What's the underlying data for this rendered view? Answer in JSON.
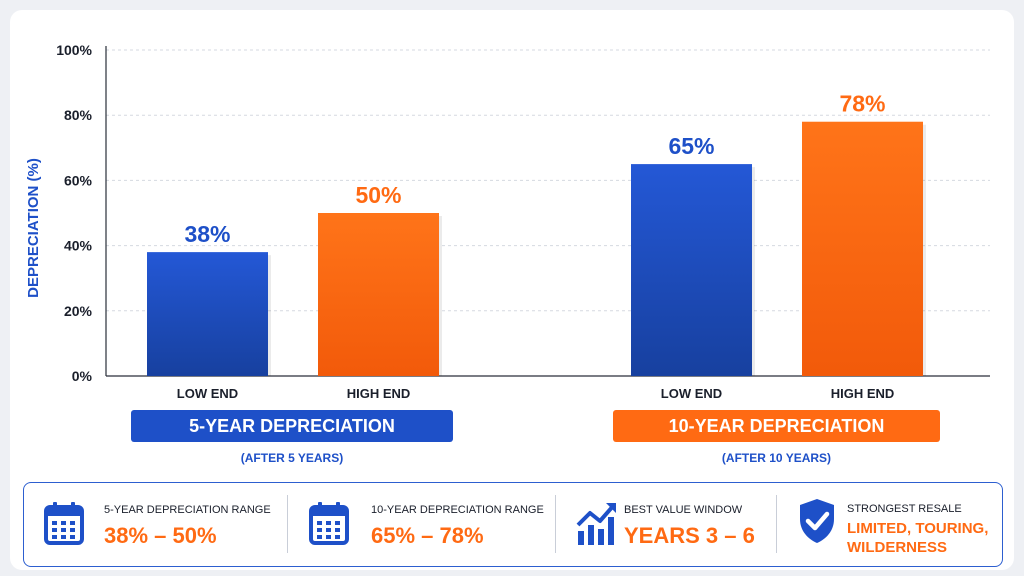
{
  "colors": {
    "blue": "#1e50c8",
    "orange": "#ff6a13",
    "grid": "#d5d9e0",
    "text": "#1a1f2b"
  },
  "chart_data": {
    "type": "bar",
    "ylabel": "DEPRECIATION (%)",
    "ylim": [
      0,
      100
    ],
    "yticks": [
      "0%",
      "20%",
      "40%",
      "60%",
      "80%",
      "100%"
    ],
    "grid": true,
    "groups": [
      {
        "title": "5-YEAR DEPRECIATION",
        "subtitle": "(AFTER 5 YEARS)",
        "color": "#1e50c8",
        "bars": [
          {
            "category": "LOW END",
            "value": 38,
            "label": "38%",
            "color": "#1e50c8"
          },
          {
            "category": "HIGH END",
            "value": 50,
            "label": "50%",
            "color": "#ff6a13"
          }
        ]
      },
      {
        "title": "10-YEAR DEPRECIATION",
        "subtitle": "(AFTER 10 YEARS)",
        "color": "#ff6a13",
        "bars": [
          {
            "category": "LOW END",
            "value": 65,
            "label": "65%",
            "color": "#1e50c8"
          },
          {
            "category": "HIGH END",
            "value": 78,
            "label": "78%",
            "color": "#ff6a13"
          }
        ]
      }
    ]
  },
  "summary": [
    {
      "icon": "calendar-icon",
      "label": "5-YEAR DEPRECIATION RANGE",
      "value": "38% – 50%"
    },
    {
      "icon": "calendar-icon",
      "label": "10-YEAR DEPRECIATION RANGE",
      "value": "65% – 78%"
    },
    {
      "icon": "trend-chart-icon",
      "label": "BEST VALUE WINDOW",
      "value": "YEARS 3 – 6"
    },
    {
      "icon": "shield-check-icon",
      "label": "STRONGEST RESALE",
      "value": "LIMITED, TOURING, WILDERNESS"
    }
  ]
}
